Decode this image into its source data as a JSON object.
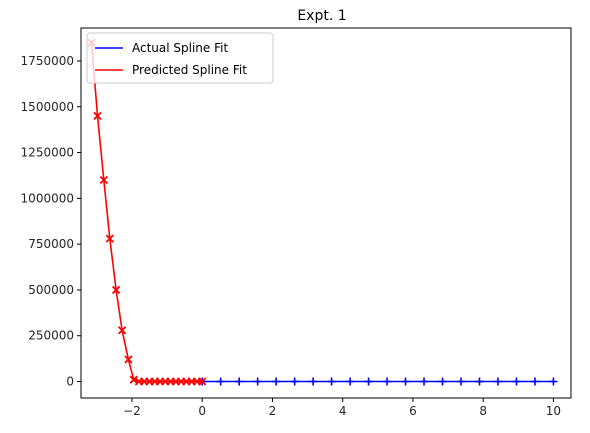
{
  "chart_data": {
    "type": "line",
    "title": "Expt. 1",
    "xlabel": "",
    "ylabel": "",
    "xlim": [
      -3.45,
      10.5
    ],
    "ylim": [
      -90000,
      1930000
    ],
    "x_ticks": [
      -2,
      0,
      2,
      4,
      6,
      8,
      10
    ],
    "x_tick_labels": [
      "−2",
      "0",
      "2",
      "4",
      "6",
      "8",
      "10"
    ],
    "y_ticks": [
      0,
      250000,
      500000,
      750000,
      1000000,
      1250000,
      1500000,
      1750000
    ],
    "y_tick_labels": [
      "0",
      "250000",
      "500000",
      "750000",
      "1000000",
      "1250000",
      "1500000",
      "1750000"
    ],
    "grid": false,
    "legend_position": "top-left",
    "series": [
      {
        "name": "Actual Spline Fit",
        "color": "#0000ff",
        "marker": "plus",
        "x": [
          0.0,
          0.526,
          1.053,
          1.579,
          2.105,
          2.632,
          3.158,
          3.684,
          4.211,
          4.737,
          5.263,
          5.789,
          6.316,
          6.842,
          7.368,
          7.895,
          8.421,
          8.947,
          9.474,
          10.0
        ],
        "y": [
          0,
          0,
          0,
          0,
          0,
          0,
          0,
          0,
          0,
          0,
          0,
          0,
          0,
          0,
          0,
          0,
          0,
          0,
          0,
          0
        ]
      },
      {
        "name": "Predicted Spline Fit",
        "color": "#ff0000",
        "marker": "x",
        "x": [
          -3.15,
          -2.98,
          -2.8,
          -2.63,
          -2.45,
          -2.28,
          -2.1,
          -1.95,
          -1.8,
          -1.65,
          -1.5,
          -1.35,
          -1.2,
          -1.05,
          -0.9,
          -0.75,
          -0.6,
          -0.45,
          -0.3,
          -0.15,
          0.0
        ],
        "y": [
          1850000,
          1450000,
          1100000,
          780000,
          500000,
          280000,
          120000,
          10000,
          0,
          0,
          0,
          0,
          0,
          0,
          0,
          0,
          0,
          0,
          0,
          0,
          0
        ]
      }
    ]
  }
}
